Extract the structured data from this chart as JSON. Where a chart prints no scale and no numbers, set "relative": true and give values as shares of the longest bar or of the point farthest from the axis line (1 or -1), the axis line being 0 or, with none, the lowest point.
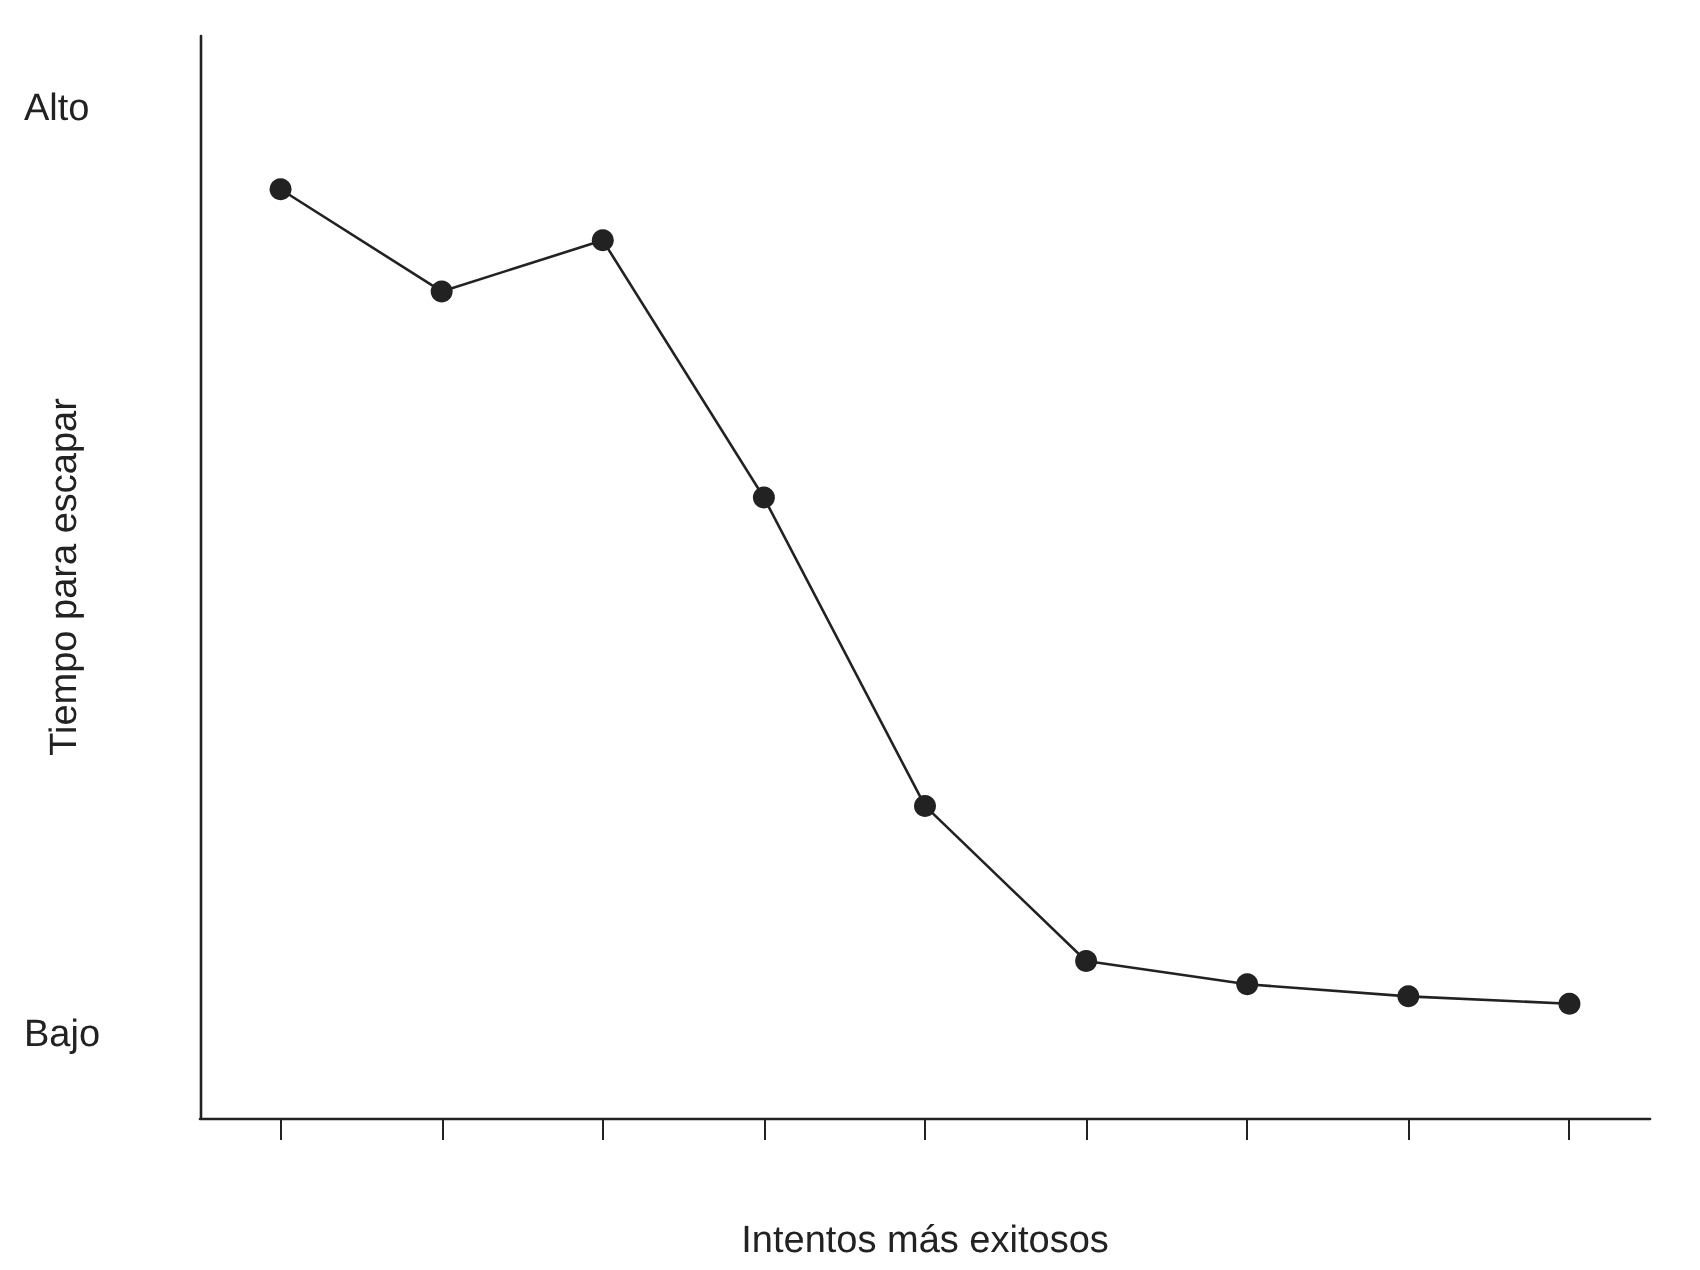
{
  "chart_data": {
    "type": "line",
    "relative": true,
    "xlabel": "Intentos más exitosos",
    "ylabel": "Tiempo para escapar",
    "annotations": [
      "Alto",
      "Bajo"
    ],
    "categories": [
      null,
      null,
      null,
      null,
      null,
      null,
      null,
      null,
      null
    ],
    "series": [
      {
        "color": "#222222",
        "values": [
          1,
          0.89,
          0.945,
          0.668,
          0.336,
          0.169,
          0.144,
          0.131,
          0.123
        ]
      }
    ],
    "marker": "circle",
    "line_style": "solid"
  }
}
